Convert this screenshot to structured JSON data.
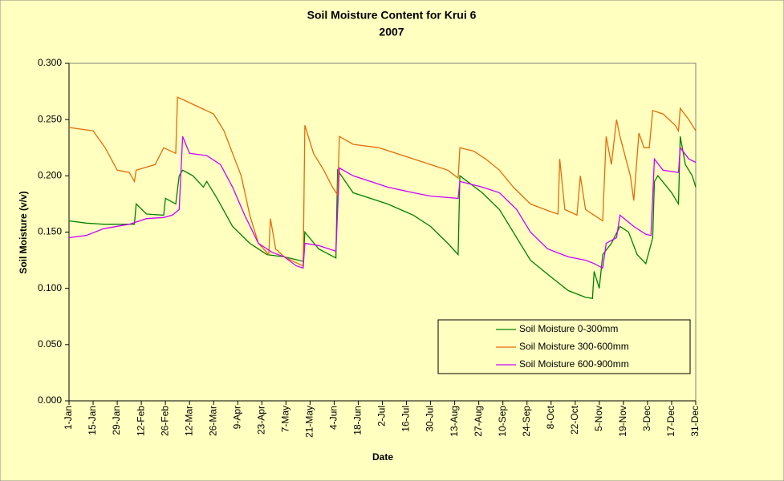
{
  "chart_data": {
    "type": "line",
    "title": "Soil Moisture Content for Krui 6",
    "subtitle": "2007",
    "x_label": "Date",
    "y_label": "Soil Moisture (v/v)",
    "xlim": [
      0,
      364
    ],
    "ylim": [
      0,
      0.3
    ],
    "yticks": [
      {
        "value": 0,
        "label": "0.000"
      },
      {
        "value": 0.05,
        "label": "0.050"
      },
      {
        "value": 0.1,
        "label": "0.100"
      },
      {
        "value": 0.15,
        "label": "0.150"
      },
      {
        "value": 0.2,
        "label": "0.200"
      },
      {
        "value": 0.25,
        "label": "0.250"
      },
      {
        "value": 0.3,
        "label": "0.300"
      }
    ],
    "xticks": [
      {
        "value": 0,
        "label": "1-Jan"
      },
      {
        "value": 14,
        "label": "15-Jan"
      },
      {
        "value": 28,
        "label": "29-Jan"
      },
      {
        "value": 42,
        "label": "12-Feb"
      },
      {
        "value": 56,
        "label": "26-Feb"
      },
      {
        "value": 70,
        "label": "12-Mar"
      },
      {
        "value": 84,
        "label": "26-Mar"
      },
      {
        "value": 98,
        "label": "9-Apr"
      },
      {
        "value": 112,
        "label": "23-Apr"
      },
      {
        "value": 126,
        "label": "7-May"
      },
      {
        "value": 140,
        "label": "21-May"
      },
      {
        "value": 154,
        "label": "4-Jun"
      },
      {
        "value": 168,
        "label": "18-Jun"
      },
      {
        "value": 182,
        "label": "2-Jul"
      },
      {
        "value": 196,
        "label": "16-Jul"
      },
      {
        "value": 210,
        "label": "30-Jul"
      },
      {
        "value": 224,
        "label": "13-Aug"
      },
      {
        "value": 238,
        "label": "27-Aug"
      },
      {
        "value": 252,
        "label": "10-Sep"
      },
      {
        "value": 266,
        "label": "24-Sep"
      },
      {
        "value": 280,
        "label": "8-Oct"
      },
      {
        "value": 294,
        "label": "22-Oct"
      },
      {
        "value": 308,
        "label": "5-Nov"
      },
      {
        "value": 322,
        "label": "19-Nov"
      },
      {
        "value": 336,
        "label": "3-Dec"
      },
      {
        "value": 350,
        "label": "17-Dec"
      },
      {
        "value": 364,
        "label": "31-Dec"
      }
    ],
    "legend": "lower right",
    "series": [
      {
        "name": "Soil Moisture 0-300mm",
        "color": "#008000",
        "x": [
          0,
          10,
          20,
          30,
          38,
          39,
          45,
          55,
          56,
          62,
          64,
          66,
          72,
          78,
          80,
          86,
          95,
          105,
          115,
          125,
          136,
          137,
          145,
          155,
          156,
          165,
          175,
          185,
          200,
          210,
          220,
          226,
          227,
          240,
          250,
          258,
          268,
          280,
          290,
          300,
          304,
          305,
          308,
          310,
          315,
          320,
          325,
          330,
          335,
          339,
          340,
          342,
          350,
          354,
          355,
          358,
          362,
          364
        ],
        "values": [
          0.16,
          0.158,
          0.157,
          0.157,
          0.157,
          0.175,
          0.166,
          0.165,
          0.18,
          0.175,
          0.2,
          0.205,
          0.2,
          0.19,
          0.195,
          0.18,
          0.155,
          0.14,
          0.13,
          0.128,
          0.124,
          0.15,
          0.135,
          0.127,
          0.205,
          0.185,
          0.18,
          0.175,
          0.165,
          0.155,
          0.14,
          0.13,
          0.2,
          0.185,
          0.17,
          0.15,
          0.125,
          0.11,
          0.098,
          0.092,
          0.091,
          0.115,
          0.1,
          0.13,
          0.14,
          0.155,
          0.15,
          0.13,
          0.122,
          0.145,
          0.195,
          0.2,
          0.185,
          0.175,
          0.235,
          0.21,
          0.2,
          0.19
        ]
      },
      {
        "name": "Soil Moisture 300-600mm",
        "color": "#e46c0a",
        "x": [
          0,
          14,
          21,
          28,
          35,
          38,
          39,
          50,
          55,
          62,
          63,
          70,
          77,
          84,
          90,
          95,
          100,
          105,
          110,
          116,
          117,
          120,
          125,
          133,
          136,
          137,
          142,
          148,
          153,
          156,
          157,
          165,
          180,
          190,
          200,
          210,
          220,
          226,
          227,
          235,
          242,
          250,
          258,
          268,
          280,
          284,
          285,
          288,
          295,
          297,
          300,
          305,
          310,
          312,
          315,
          318,
          320,
          326,
          328,
          331,
          334,
          337,
          339,
          345,
          352,
          354,
          355,
          360,
          364
        ],
        "values": [
          0.243,
          0.24,
          0.225,
          0.205,
          0.203,
          0.195,
          0.205,
          0.21,
          0.225,
          0.22,
          0.27,
          0.265,
          0.26,
          0.255,
          0.24,
          0.22,
          0.2,
          0.165,
          0.14,
          0.13,
          0.162,
          0.135,
          0.128,
          0.122,
          0.12,
          0.245,
          0.22,
          0.205,
          0.19,
          0.183,
          0.235,
          0.228,
          0.225,
          0.22,
          0.215,
          0.21,
          0.205,
          0.198,
          0.225,
          0.222,
          0.215,
          0.205,
          0.19,
          0.175,
          0.168,
          0.166,
          0.215,
          0.17,
          0.165,
          0.2,
          0.17,
          0.165,
          0.16,
          0.235,
          0.21,
          0.25,
          0.235,
          0.2,
          0.178,
          0.238,
          0.225,
          0.225,
          0.258,
          0.255,
          0.245,
          0.24,
          0.26,
          0.25,
          0.24
        ]
      },
      {
        "name": "Soil Moisture 600-900mm",
        "color": "#cc00ff",
        "x": [
          0,
          10,
          20,
          35,
          45,
          55,
          60,
          64,
          66,
          70,
          80,
          88,
          95,
          102,
          110,
          118,
          125,
          132,
          136,
          137,
          145,
          155,
          157,
          165,
          175,
          185,
          200,
          210,
          226,
          227,
          240,
          250,
          260,
          268,
          278,
          290,
          300,
          305,
          310,
          312,
          318,
          320,
          328,
          335,
          338,
          340,
          345,
          354,
          355,
          360,
          364
        ],
        "values": [
          0.145,
          0.147,
          0.153,
          0.157,
          0.162,
          0.163,
          0.165,
          0.17,
          0.235,
          0.22,
          0.218,
          0.21,
          0.19,
          0.165,
          0.14,
          0.132,
          0.128,
          0.12,
          0.118,
          0.14,
          0.138,
          0.133,
          0.207,
          0.2,
          0.195,
          0.19,
          0.185,
          0.182,
          0.18,
          0.195,
          0.19,
          0.185,
          0.17,
          0.15,
          0.135,
          0.128,
          0.125,
          0.122,
          0.118,
          0.14,
          0.145,
          0.165,
          0.155,
          0.148,
          0.147,
          0.215,
          0.205,
          0.203,
          0.225,
          0.215,
          0.212
        ]
      }
    ]
  }
}
